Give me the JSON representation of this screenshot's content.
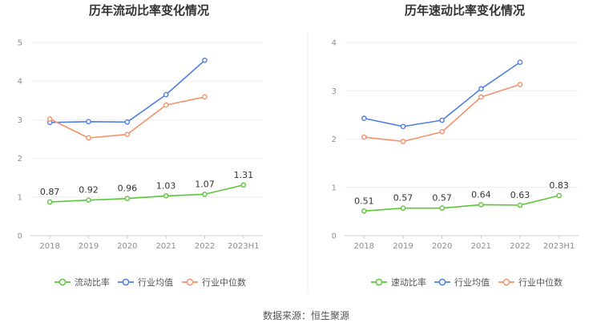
{
  "chart_data": [
    {
      "type": "line",
      "title": "历年流动比率变化情况",
      "categories": [
        "2018",
        "2019",
        "2020",
        "2021",
        "2022",
        "2023H1"
      ],
      "y_ticks": [
        "0",
        "1",
        "2",
        "3",
        "4",
        "5"
      ],
      "ylim": [
        0,
        5
      ],
      "grid": true,
      "legend_position": "bottom",
      "series": [
        {
          "name": "流动比率",
          "color": "#5cc639",
          "values": [
            0.87,
            0.92,
            0.96,
            1.03,
            1.07,
            1.31
          ],
          "labels": [
            "0.87",
            "0.92",
            "0.96",
            "1.03",
            "1.07",
            "1.31"
          ]
        },
        {
          "name": "行业均值",
          "color": "#4f7fe0",
          "values": [
            2.93,
            2.95,
            2.94,
            3.65,
            4.54,
            null
          ]
        },
        {
          "name": "行业中位数",
          "color": "#f3926b",
          "values": [
            3.02,
            2.53,
            2.62,
            3.38,
            3.59,
            null
          ]
        }
      ]
    },
    {
      "type": "line",
      "title": "历年速动比率变化情况",
      "categories": [
        "2018",
        "2019",
        "2020",
        "2021",
        "2022",
        "2023H1"
      ],
      "y_ticks": [
        "0",
        "1",
        "2",
        "3",
        "4"
      ],
      "ylim": [
        0,
        4
      ],
      "grid": true,
      "legend_position": "bottom",
      "series": [
        {
          "name": "速动比率",
          "color": "#5cc639",
          "values": [
            0.51,
            0.57,
            0.57,
            0.64,
            0.63,
            0.83
          ],
          "labels": [
            "0.51",
            "0.57",
            "0.57",
            "0.64",
            "0.63",
            "0.83"
          ]
        },
        {
          "name": "行业均值",
          "color": "#4f7fe0",
          "values": [
            2.43,
            2.26,
            2.39,
            3.04,
            3.59,
            null
          ]
        },
        {
          "name": "行业中位数",
          "color": "#f3926b",
          "values": [
            2.04,
            1.95,
            2.15,
            2.87,
            3.13,
            null
          ]
        }
      ]
    }
  ],
  "footer": {
    "source": "数据来源：恒生聚源"
  }
}
